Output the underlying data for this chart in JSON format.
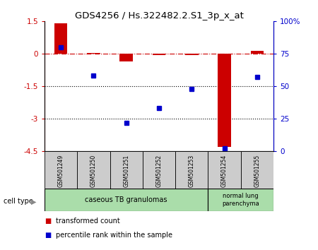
{
  "title": "GDS4256 / Hs.322482.2.S1_3p_x_at",
  "samples": [
    "GSM501249",
    "GSM501250",
    "GSM501251",
    "GSM501252",
    "GSM501253",
    "GSM501254",
    "GSM501255"
  ],
  "red_values": [
    1.4,
    0.05,
    -0.35,
    -0.05,
    -0.05,
    -4.3,
    0.15
  ],
  "blue_values_pct": [
    80,
    58,
    22,
    33,
    48,
    2,
    57
  ],
  "ylim_left": [
    -4.5,
    1.5
  ],
  "ylim_right": [
    0,
    100
  ],
  "yticks_left": [
    1.5,
    0,
    -1.5,
    -3,
    -4.5
  ],
  "yticks_right": [
    100,
    75,
    50,
    25,
    0
  ],
  "dotted_lines": [
    -1.5,
    -3
  ],
  "red_color": "#CC0000",
  "blue_color": "#0000CC",
  "bar_width": 0.4,
  "legend_red": "transformed count",
  "legend_blue": "percentile rank within the sample",
  "cell_type_label": "cell type",
  "group1_label": "caseous TB granulomas",
  "group2_label": "normal lung\nparenchyma",
  "group1_color": "#aaddaa",
  "group2_color": "#aaddaa",
  "sample_box_color": "#cccccc"
}
